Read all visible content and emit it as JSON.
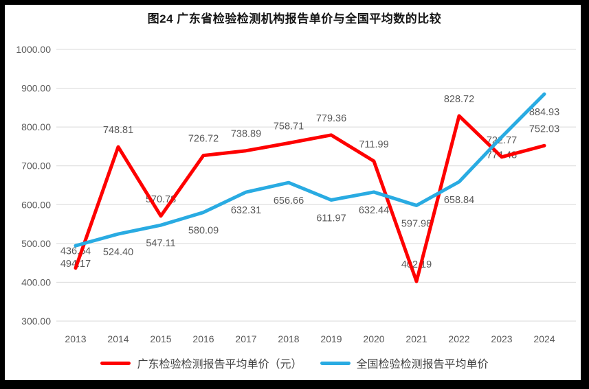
{
  "title": "图24  广东省检验检测机构报告单价与全国平均数的比较",
  "colors": {
    "frame": "#000000",
    "background": "#FFFFFF",
    "grid": "#D9D9D9",
    "axis_text": "#595959",
    "data_label_text": "#595959",
    "title_text": "#151515",
    "guangdong_red": "#FE0000",
    "national_blue": "#29ABE2"
  },
  "chart_data": {
    "type": "line",
    "title": "图24  广东省检验检测机构报告单价与全国平均数的比较",
    "categories": [
      "2013",
      "2014",
      "2015",
      "2016",
      "2017",
      "2018",
      "2019",
      "2020",
      "2021",
      "2022",
      "2023",
      "2024"
    ],
    "series": [
      {
        "name": "广东检验检测报告平均单价（元）",
        "color": "#FE0000",
        "label_position": "above",
        "values": [
          436.64,
          748.81,
          570.78,
          726.72,
          738.89,
          758.71,
          779.36,
          711.99,
          402.19,
          828.72,
          722.77,
          752.03
        ]
      },
      {
        "name": "全国检验检测报告平均单价",
        "color": "#29ABE2",
        "label_position": "below",
        "values": [
          494.17,
          524.4,
          547.11,
          580.09,
          632.31,
          656.66,
          611.97,
          632.44,
          597.98,
          658.84,
          774.48,
          884.93
        ]
      }
    ],
    "ylim": [
      300,
      1000
    ],
    "ytick_step": 100,
    "ytick_labels": [
      "1000.00",
      "900.00",
      "800.00",
      "700.00",
      "600.00",
      "500.00",
      "400.00",
      "300.00"
    ],
    "xlabel": "",
    "ylabel": "",
    "grid": true,
    "legend_position": "bottom",
    "data_label_decimals": 2
  }
}
